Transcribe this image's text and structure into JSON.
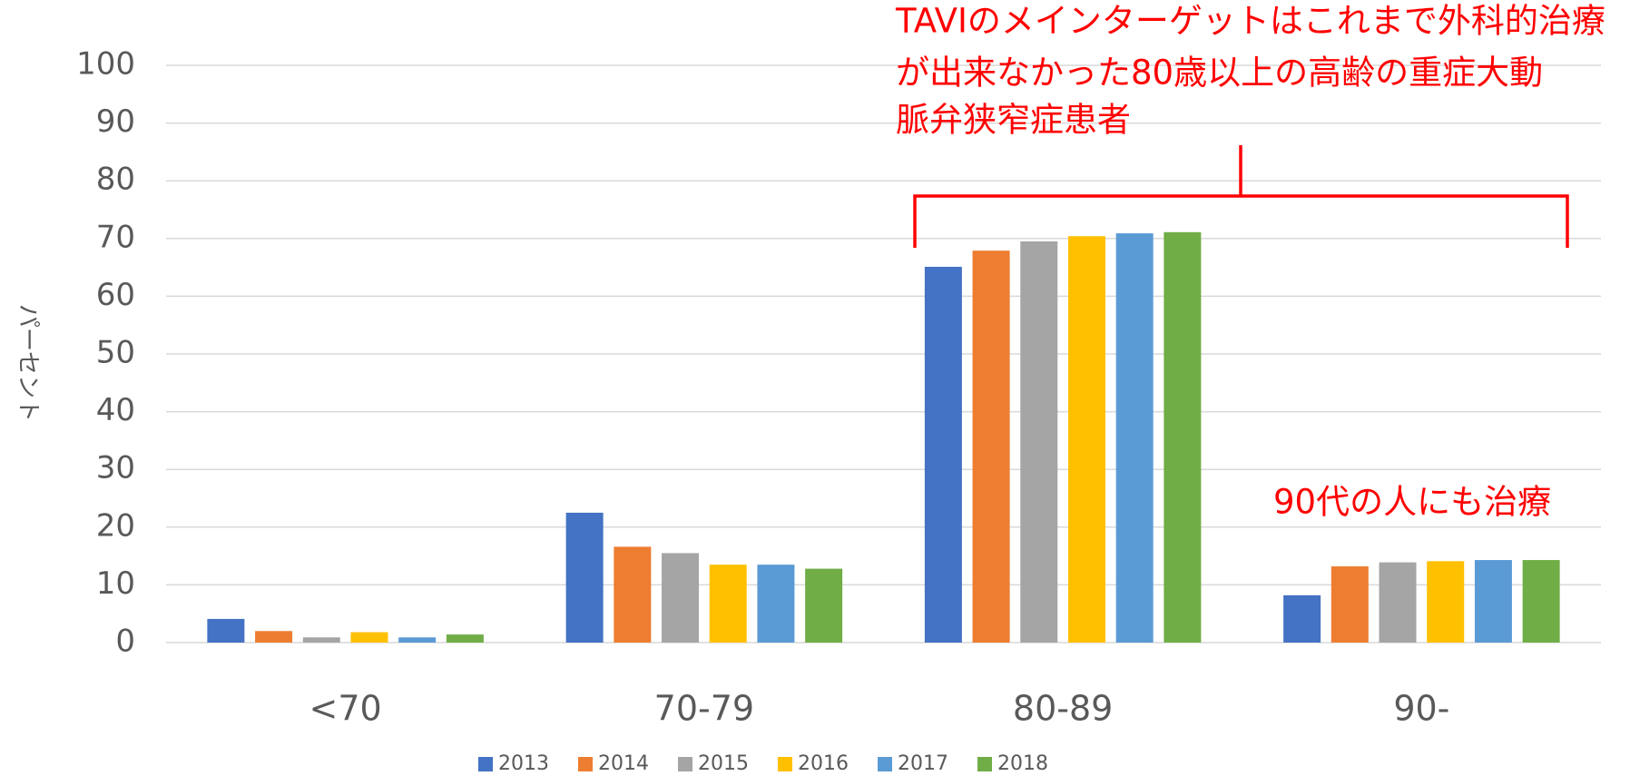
{
  "chart_data": {
    "type": "bar",
    "ylabel": "パーセント",
    "categories": [
      "<70",
      "70-79",
      "80-89",
      "90-"
    ],
    "series": [
      {
        "name": "2013",
        "color": "#4472c4",
        "values": [
          4.1,
          22.5,
          65.1,
          8.2
        ]
      },
      {
        "name": "2014",
        "color": "#ed7d31",
        "values": [
          2.0,
          16.6,
          67.9,
          13.2
        ]
      },
      {
        "name": "2015",
        "color": "#a5a5a5",
        "values": [
          0.9,
          15.5,
          69.5,
          13.9
        ]
      },
      {
        "name": "2016",
        "color": "#ffc000",
        "values": [
          1.8,
          13.5,
          70.4,
          14.1
        ]
      },
      {
        "name": "2017",
        "color": "#5b9bd5",
        "values": [
          0.9,
          13.5,
          70.9,
          14.3
        ]
      },
      {
        "name": "2018",
        "color": "#70ad47",
        "values": [
          1.4,
          12.8,
          71.1,
          14.3
        ]
      }
    ],
    "ylim": [
      0,
      100
    ],
    "yticks": [
      0,
      10,
      20,
      30,
      40,
      50,
      60,
      70,
      80,
      90,
      100
    ],
    "grid": true,
    "legend": "bottom",
    "annotations": [
      "TAVIのメインターゲットはこれまで外科的治療",
      "が出来なかった80歳以上の高齢の重症大動",
      "脈弁狭窄症患者",
      "90代の人にも治療"
    ],
    "annotation_color": "#ff0000"
  }
}
